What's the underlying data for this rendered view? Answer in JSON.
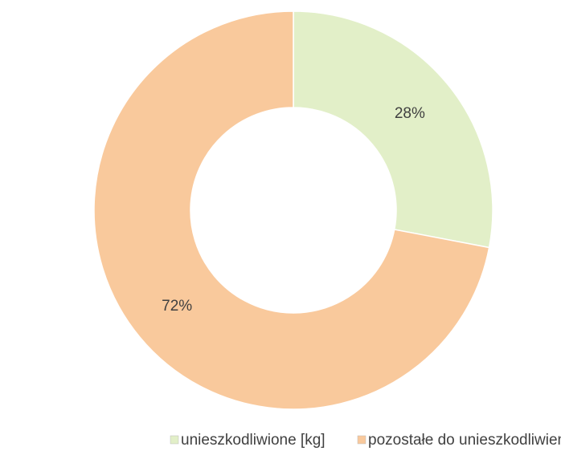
{
  "chart_data": {
    "type": "donut",
    "categories": [
      "unieszkodliwione [kg]",
      "pozostałe do unieszkodliwienia [kg]"
    ],
    "values": [
      28,
      72
    ],
    "value_labels": [
      "28%",
      "72%"
    ],
    "colors": [
      "#e2efc8",
      "#f9c99c"
    ],
    "legend": "bottom"
  }
}
